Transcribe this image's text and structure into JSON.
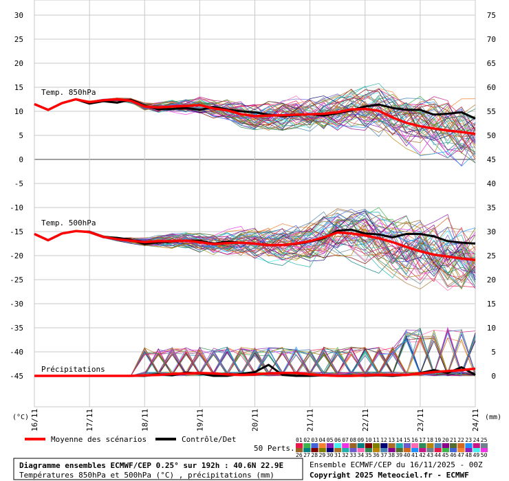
{
  "chart_data": {
    "type": "line",
    "title": "Diagramme ensembles ECMWF/CEP 0.25° sur 192h : 40.6N 22.9E",
    "subtitle": "Températures 850hPa et 500hPa (°C) , précipitations (mm)",
    "source_line1": "Ensemble ECMWF/CEP du 16/11/2025 - 00Z",
    "source_line2": "Copyright 2025 Meteociel.fr - ECMWF",
    "left_unit": "(°C)",
    "right_unit": "(mm)",
    "left_ticks": [
      "30",
      "25",
      "20",
      "15",
      "10",
      "5",
      "0",
      "-5",
      "-10",
      "-15",
      "-20",
      "-25",
      "-30",
      "-35",
      "-40",
      "-45"
    ],
    "right_ticks": [
      "75",
      "70",
      "65",
      "60",
      "55",
      "50",
      "45",
      "40",
      "35",
      "30",
      "25",
      "20",
      "15",
      "10",
      "5",
      "0"
    ],
    "x_ticks": [
      "16/11",
      "17/11",
      "18/11",
      "19/11",
      "20/11",
      "21/11",
      "22/11",
      "23/11",
      "24/11"
    ],
    "ylim": [
      -45,
      30
    ],
    "grid": true,
    "panel_labels": {
      "t850": "Temp. 850hPa",
      "t500": "Temp. 500hPa",
      "precip": "Précipitations"
    },
    "legend": {
      "mean_label": "Moyenne des scénarios",
      "control_label": "Contrôle/Det",
      "perts_label": "50 Perts.",
      "perts_row1": [
        "01",
        "02",
        "03",
        "04",
        "05",
        "06",
        "07",
        "08",
        "09",
        "10",
        "11",
        "12",
        "13",
        "14",
        "15",
        "16",
        "17",
        "18",
        "19",
        "20",
        "21",
        "22",
        "23",
        "24",
        "25"
      ],
      "perts_row2": [
        "26",
        "27",
        "28",
        "29",
        "30",
        "31",
        "32",
        "33",
        "34",
        "35",
        "36",
        "37",
        "38",
        "39",
        "40",
        "41",
        "42",
        "43",
        "44",
        "45",
        "46",
        "47",
        "48",
        "49",
        "50"
      ]
    },
    "colors": {
      "mean": "#ff0000",
      "control": "#000000",
      "grid": "#c8c8c8",
      "zero_line": "#808080"
    },
    "series": [
      {
        "name": "Moyenne des scénarios",
        "t850": [
          11.5,
          10.3,
          11.7,
          12.5,
          11.9,
          12.3,
          12.5,
          12.2,
          11.0,
          10.8,
          11.0,
          11.1,
          11.3,
          10.6,
          10.2,
          9.4,
          9.0,
          9.1,
          9.2,
          9.3,
          9.4,
          9.5,
          9.8,
          10.4,
          10.5,
          10.1,
          8.7,
          7.6,
          6.9,
          6.4,
          6.0,
          5.7,
          5.3
        ],
        "t500": [
          -15.5,
          -16.8,
          -15.4,
          -14.9,
          -15.1,
          -16.1,
          -16.6,
          -16.9,
          -17.2,
          -17.0,
          -17.0,
          -16.9,
          -17.2,
          -17.6,
          -17.4,
          -17.3,
          -17.5,
          -17.8,
          -17.8,
          -17.5,
          -17.0,
          -16.2,
          -15.2,
          -15.4,
          -15.8,
          -16.4,
          -17.2,
          -18.2,
          -19.1,
          -19.8,
          -20.2,
          -20.6,
          -20.9
        ],
        "precip": [
          0.0,
          0.0,
          0.0,
          0.0,
          0.0,
          0.0,
          0.0,
          0.0,
          0.1,
          0.2,
          0.4,
          0.5,
          0.6,
          0.5,
          0.3,
          0.2,
          0.3,
          0.5,
          0.6,
          0.6,
          0.3,
          0.1,
          0.0,
          0.0,
          0.1,
          0.2,
          0.2,
          0.2,
          0.5,
          0.8,
          1.0,
          1.2,
          1.5
        ]
      },
      {
        "name": "Contrôle/Det",
        "t850": [
          11.5,
          10.3,
          11.7,
          12.5,
          11.6,
          12.1,
          11.8,
          12.4,
          11.2,
          10.4,
          10.5,
          10.7,
          10.3,
          10.9,
          10.4,
          10.0,
          9.8,
          9.3,
          9.0,
          9.2,
          9.4,
          9.1,
          9.6,
          10.2,
          11.0,
          11.4,
          10.7,
          10.3,
          10.3,
          9.3,
          9.5,
          9.8,
          8.5
        ],
        "t500": [
          -15.5,
          -16.8,
          -15.4,
          -14.9,
          -15.1,
          -16.1,
          -16.3,
          -16.7,
          -17.6,
          -17.2,
          -17.1,
          -16.9,
          -16.9,
          -17.5,
          -17.1,
          -17.3,
          -17.5,
          -17.8,
          -17.8,
          -17.6,
          -17.1,
          -16.4,
          -14.8,
          -14.6,
          -15.4,
          -15.6,
          -16.2,
          -15.5,
          -15.5,
          -16.0,
          -17.0,
          -17.3,
          -17.5
        ],
        "precip": [
          0.0,
          0.0,
          0.0,
          0.0,
          0.0,
          0.0,
          0.0,
          0.0,
          0.0,
          0.3,
          0.1,
          0.7,
          0.5,
          0.0,
          0.0,
          0.4,
          0.8,
          2.3,
          0.2,
          0.0,
          0.0,
          0.1,
          0.0,
          0.1,
          0.0,
          0.1,
          0.0,
          0.2,
          0.6,
          1.2,
          0.6,
          1.8,
          0.2
        ]
      }
    ]
  }
}
